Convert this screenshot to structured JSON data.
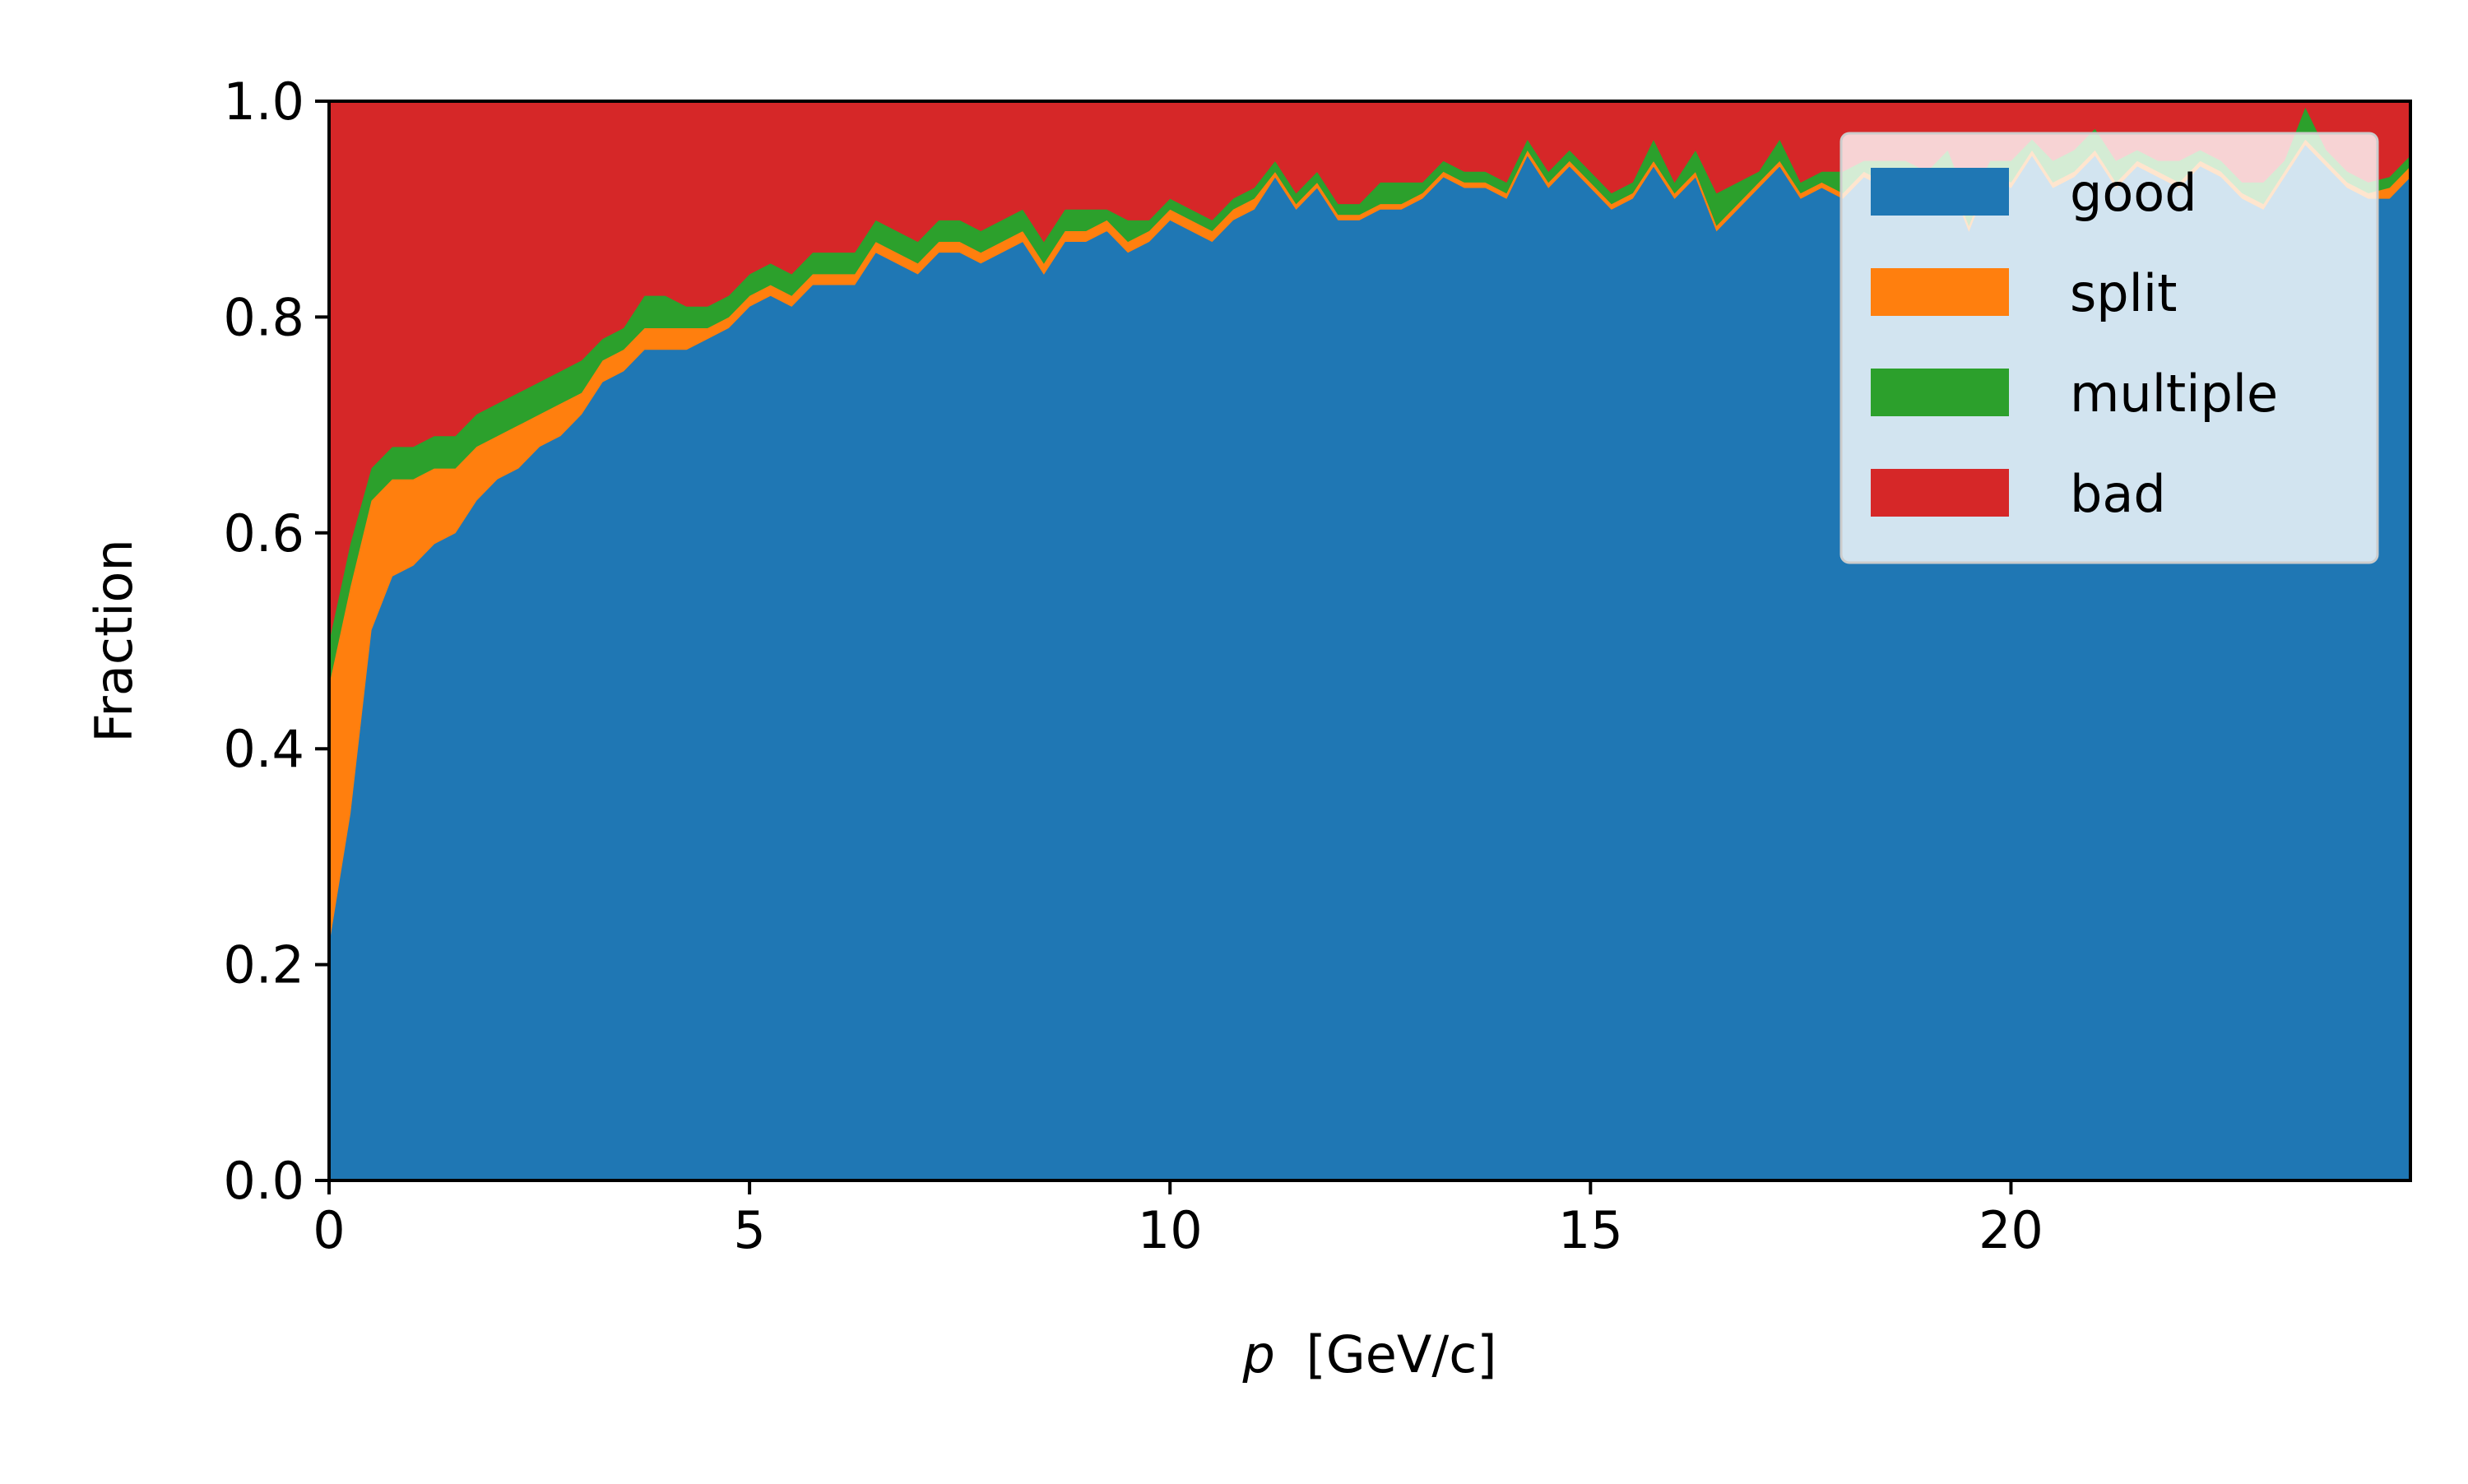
{
  "chart_data": {
    "type": "area",
    "stacked": true,
    "xlabel_var": "p",
    "xlabel_unit": "[GeV/c]",
    "ylabel": "Fraction",
    "xlim": [
      0,
      24.75
    ],
    "ylim": [
      0,
      1.0
    ],
    "x_ticks": [
      0,
      5,
      10,
      15,
      20
    ],
    "x_tick_labels": [
      "0",
      "5",
      "10",
      "15",
      "20"
    ],
    "y_ticks": [
      0,
      0.2,
      0.4,
      0.6,
      0.8,
      1.0
    ],
    "y_tick_labels": [
      "0.0",
      "0.2",
      "0.4",
      "0.6",
      "0.8",
      "1.0"
    ],
    "grid": false,
    "legend_position": "top-right",
    "x": [
      0,
      0.25,
      0.5,
      0.75,
      1.0,
      1.25,
      1.5,
      1.75,
      2.0,
      2.25,
      2.5,
      2.75,
      3.0,
      3.25,
      3.5,
      3.75,
      4.0,
      4.25,
      4.5,
      4.75,
      5.0,
      5.25,
      5.5,
      5.75,
      6.0,
      6.25,
      6.5,
      6.75,
      7.0,
      7.25,
      7.5,
      7.75,
      8.0,
      8.25,
      8.5,
      8.75,
      9.0,
      9.25,
      9.5,
      9.75,
      10.0,
      10.25,
      10.5,
      10.75,
      11.0,
      11.25,
      11.5,
      11.75,
      12.0,
      12.25,
      12.5,
      12.75,
      13.0,
      13.25,
      13.5,
      13.75,
      14.0,
      14.25,
      14.5,
      14.75,
      15.0,
      15.25,
      15.5,
      15.75,
      16.0,
      16.25,
      16.5,
      16.75,
      17.0,
      17.25,
      17.5,
      17.75,
      18.0,
      18.25,
      18.5,
      18.75,
      19.0,
      19.25,
      19.5,
      19.75,
      20.0,
      20.25,
      20.5,
      20.75,
      21.0,
      21.25,
      21.5,
      21.75,
      22.0,
      22.25,
      22.5,
      22.75,
      23.0,
      23.25,
      23.5,
      23.75,
      24.0,
      24.25,
      24.5,
      24.75
    ],
    "series": [
      {
        "name": "good",
        "color": "#1f77b4",
        "values": [
          0.22,
          0.34,
          0.51,
          0.56,
          0.57,
          0.59,
          0.6,
          0.63,
          0.65,
          0.66,
          0.68,
          0.69,
          0.71,
          0.74,
          0.75,
          0.77,
          0.77,
          0.77,
          0.78,
          0.79,
          0.81,
          0.82,
          0.81,
          0.83,
          0.83,
          0.83,
          0.86,
          0.85,
          0.84,
          0.86,
          0.86,
          0.85,
          0.86,
          0.87,
          0.84,
          0.87,
          0.87,
          0.88,
          0.86,
          0.87,
          0.89,
          0.88,
          0.87,
          0.89,
          0.9,
          0.93,
          0.9,
          0.92,
          0.89,
          0.89,
          0.9,
          0.9,
          0.91,
          0.93,
          0.92,
          0.92,
          0.91,
          0.95,
          0.92,
          0.94,
          0.92,
          0.9,
          0.91,
          0.94,
          0.91,
          0.93,
          0.88,
          0.9,
          0.92,
          0.94,
          0.91,
          0.92,
          0.91,
          0.93,
          0.92,
          0.93,
          0.92,
          0.93,
          0.88,
          0.93,
          0.92,
          0.95,
          0.92,
          0.93,
          0.95,
          0.92,
          0.94,
          0.93,
          0.92,
          0.94,
          0.93,
          0.91,
          0.9,
          0.93,
          0.96,
          0.94,
          0.92,
          0.91,
          0.91,
          0.93
        ]
      },
      {
        "name": "split",
        "color": "#ff7f0e",
        "values": [
          0.24,
          0.21,
          0.12,
          0.09,
          0.08,
          0.07,
          0.06,
          0.05,
          0.04,
          0.04,
          0.03,
          0.03,
          0.02,
          0.02,
          0.02,
          0.02,
          0.02,
          0.02,
          0.01,
          0.01,
          0.01,
          0.01,
          0.01,
          0.01,
          0.01,
          0.01,
          0.01,
          0.01,
          0.01,
          0.01,
          0.01,
          0.01,
          0.01,
          0.01,
          0.01,
          0.01,
          0.01,
          0.01,
          0.01,
          0.01,
          0.01,
          0.01,
          0.01,
          0.01,
          0.01,
          0.005,
          0.005,
          0.005,
          0.005,
          0.005,
          0.005,
          0.005,
          0.005,
          0.005,
          0.005,
          0.005,
          0.005,
          0.005,
          0.005,
          0.005,
          0.005,
          0.005,
          0.005,
          0.005,
          0.005,
          0.005,
          0.005,
          0.005,
          0.005,
          0.005,
          0.005,
          0.005,
          0.005,
          0.005,
          0.005,
          0.005,
          0.005,
          0.005,
          0.005,
          0.005,
          0.005,
          0.005,
          0.005,
          0.005,
          0.005,
          0.005,
          0.005,
          0.005,
          0.005,
          0.005,
          0.005,
          0.005,
          0.005,
          0.005,
          0.005,
          0.005,
          0.005,
          0.005,
          0.01,
          0.01
        ]
      },
      {
        "name": "multiple",
        "color": "#2ca02c",
        "values": [
          0.04,
          0.04,
          0.03,
          0.03,
          0.03,
          0.03,
          0.03,
          0.03,
          0.03,
          0.03,
          0.03,
          0.03,
          0.03,
          0.02,
          0.02,
          0.03,
          0.03,
          0.02,
          0.02,
          0.02,
          0.02,
          0.02,
          0.02,
          0.02,
          0.02,
          0.02,
          0.02,
          0.02,
          0.02,
          0.02,
          0.02,
          0.02,
          0.02,
          0.02,
          0.02,
          0.02,
          0.02,
          0.01,
          0.02,
          0.01,
          0.01,
          0.01,
          0.01,
          0.01,
          0.01,
          0.01,
          0.01,
          0.01,
          0.01,
          0.01,
          0.02,
          0.02,
          0.01,
          0.01,
          0.01,
          0.01,
          0.01,
          0.01,
          0.01,
          0.01,
          0.01,
          0.01,
          0.01,
          0.02,
          0.01,
          0.02,
          0.03,
          0.02,
          0.01,
          0.02,
          0.01,
          0.01,
          0.02,
          0.01,
          0.02,
          0.01,
          0.01,
          0.02,
          0.02,
          0.01,
          0.02,
          0.01,
          0.02,
          0.02,
          0.02,
          0.02,
          0.01,
          0.01,
          0.02,
          0.01,
          0.01,
          0.01,
          0.02,
          0.01,
          0.03,
          0.01,
          0.01,
          0.01,
          0.01,
          0.01
        ]
      },
      {
        "name": "bad",
        "color": "#d62728",
        "values": "remainder to 1.0"
      }
    ]
  },
  "legend": {
    "items": [
      {
        "label": "good",
        "color": "#1f77b4"
      },
      {
        "label": "split",
        "color": "#ff7f0e"
      },
      {
        "label": "multiple",
        "color": "#2ca02c"
      },
      {
        "label": "bad",
        "color": "#d62728"
      }
    ]
  }
}
